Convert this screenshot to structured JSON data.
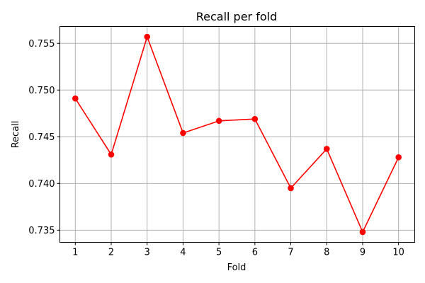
{
  "chart_data": {
    "type": "line",
    "title": "Recall per fold",
    "xlabel": "Fold",
    "ylabel": "Recall",
    "x": [
      1,
      2,
      3,
      4,
      5,
      6,
      7,
      8,
      9,
      10
    ],
    "series": [
      {
        "values": [
          0.7491,
          0.7431,
          0.7557,
          0.7454,
          0.7467,
          0.7469,
          0.7395,
          0.7437,
          0.7348,
          0.7428
        ],
        "color": "#ff0000",
        "marker": "circle"
      }
    ],
    "xticks": [
      "1",
      "2",
      "3",
      "4",
      "5",
      "6",
      "7",
      "8",
      "9",
      "10"
    ],
    "yticks": [
      "0.735",
      "0.740",
      "0.745",
      "0.750",
      "0.755"
    ],
    "xlim": [
      0.57,
      10.45
    ],
    "ylim": [
      0.7337,
      0.7568
    ],
    "grid": true
  }
}
